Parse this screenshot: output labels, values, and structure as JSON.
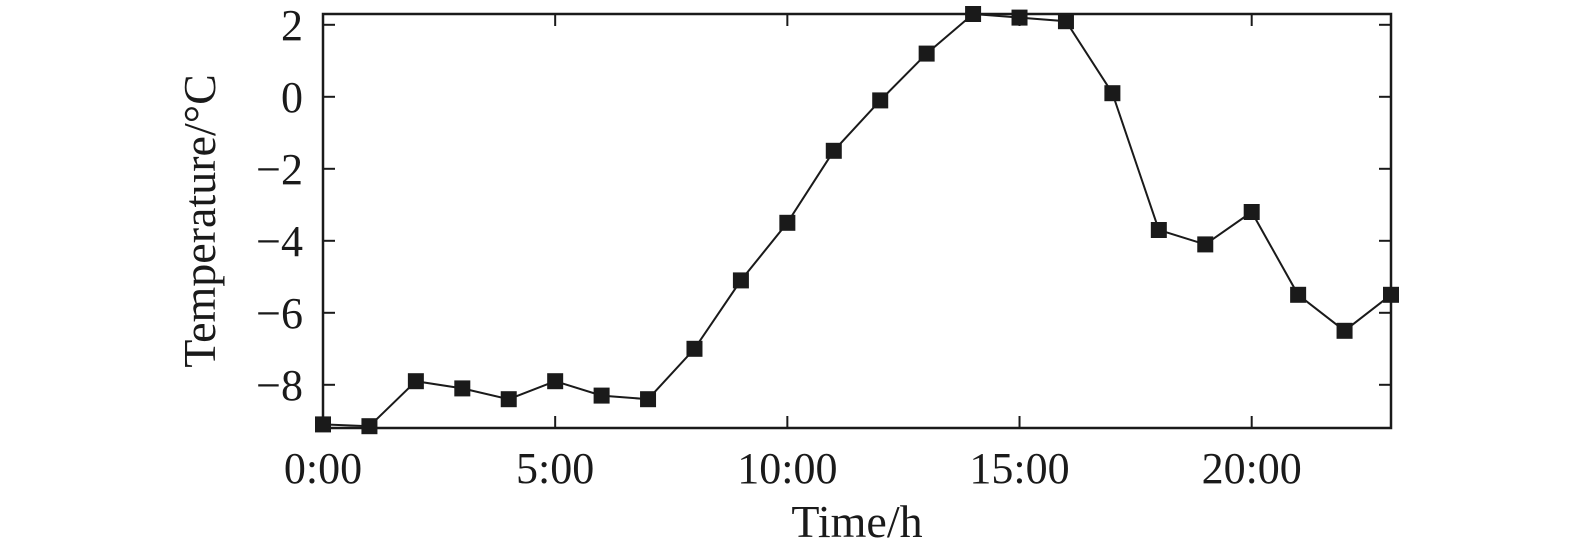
{
  "chart_data": {
    "type": "line",
    "title": "",
    "xlabel": "Time/h",
    "ylabel": "Temperature/°C",
    "x": [
      0,
      1,
      2,
      3,
      4,
      5,
      6,
      7,
      8,
      9,
      10,
      11,
      12,
      13,
      14,
      15,
      16,
      17,
      18,
      19,
      20,
      21,
      22,
      23
    ],
    "series": [
      {
        "values": [
          -9.1,
          -9.15,
          -7.9,
          -8.1,
          -8.4,
          -7.9,
          -8.3,
          -8.4,
          -7.0,
          -5.1,
          -3.5,
          -1.5,
          -0.1,
          1.2,
          2.3,
          2.2,
          2.1,
          0.1,
          -3.7,
          -4.1,
          -3.2,
          -5.5,
          -6.5,
          -5.5
        ],
        "marker": "square",
        "color": "#1a1a1a"
      }
    ],
    "xlim": [
      0,
      23
    ],
    "ylim": [
      -9.2,
      2.3
    ],
    "xticks": [
      0,
      5,
      10,
      15,
      20
    ],
    "xtick_labels": [
      "0:00",
      "5:00",
      "10:00",
      "15:00",
      "20:00"
    ],
    "yticks": [
      -8,
      -6,
      -4,
      -2,
      0,
      2
    ],
    "ytick_labels": [
      "−8",
      "−6",
      "−4",
      "−2",
      "0",
      "2"
    ],
    "grid": false,
    "legend": "none"
  }
}
